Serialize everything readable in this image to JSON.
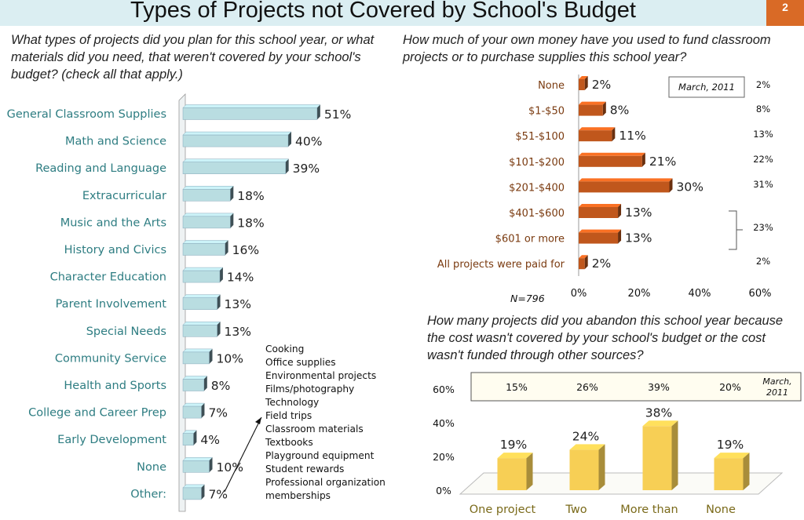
{
  "slide": {
    "title": "Types of Projects not Covered by School's Budget",
    "number": "2"
  },
  "questions": {
    "q1": "What types of projects did you plan for this school year, or what materials did you need, that weren't covered by your school's budget? (check all that apply.)",
    "q2": "How much of your own money have you used to fund classroom projects or to purchase supplies this school year?",
    "q3": "How many projects did you abandon this school year because the cost wasn't covered by your school's budget or the cost wasn't funded through other sources?"
  },
  "other_list": [
    "Cooking",
    "Office supplies",
    "Environmental projects",
    "Films/photography",
    "Technology",
    "Field trips",
    "Classroom materials",
    "Textbooks",
    "Playground equipment",
    "Student rewards",
    "Professional organization",
    "memberships"
  ],
  "colors": {
    "teal_bar": "#b9dde1",
    "orange_bar": "#c0571c",
    "yellow_bar": "#f7cf55",
    "category_text": "#2e7d82",
    "title_bg": "#dbeef2",
    "accent": "#d96a26"
  },
  "chart_data": [
    {
      "type": "bar",
      "orientation": "horizontal",
      "categories": [
        "General Classroom Supplies",
        "Math and Science",
        "Reading and Language",
        "Extracurricular",
        "Music and the Arts",
        "History and Civics",
        "Character Education",
        "Parent Involvement",
        "Special Needs",
        "Community Service",
        "Health and Sports",
        "College and Career Prep",
        "Early Development",
        "None",
        "Other:"
      ],
      "values": [
        51,
        40,
        39,
        18,
        18,
        16,
        14,
        13,
        13,
        10,
        8,
        7,
        4,
        10,
        7
      ],
      "labels": [
        "51%",
        "40%",
        "39%",
        "18%",
        "18%",
        "16%",
        "14%",
        "13%",
        "13%",
        "10%",
        "8%",
        "7%",
        "4%",
        "10%",
        "7%"
      ],
      "unit": "%"
    },
    {
      "type": "bar",
      "orientation": "horizontal",
      "categories": [
        "None",
        "$1-$50",
        "$51-$100",
        "$101-$200",
        "$201-$400",
        "$401-$600",
        "$601 or more",
        "All projects were paid for"
      ],
      "values": [
        2,
        8,
        11,
        21,
        30,
        13,
        13,
        2
      ],
      "labels": [
        "2%",
        "8%",
        "11%",
        "21%",
        "30%",
        "13%",
        "13%",
        "2%"
      ],
      "xlim": [
        0,
        60
      ],
      "ticks": [
        "0%",
        "20%",
        "40%",
        "60%"
      ],
      "note": "N=796",
      "comparison": {
        "label": "March, 2011",
        "values": [
          "2%",
          "8%",
          "13%",
          "22%",
          "31%",
          "23%",
          "2%"
        ]
      }
    },
    {
      "type": "bar",
      "style": "3d",
      "categories": [
        "One project",
        "Two",
        "More than",
        "None"
      ],
      "values": [
        19,
        24,
        38,
        19
      ],
      "labels": [
        "19%",
        "24%",
        "38%",
        "19%"
      ],
      "ylim": [
        0,
        60
      ],
      "ticks": [
        "0%",
        "20%",
        "40%",
        "60%"
      ],
      "comparison": {
        "label": "March, 2011",
        "values": [
          "15%",
          "26%",
          "39%",
          "20%"
        ]
      }
    }
  ]
}
